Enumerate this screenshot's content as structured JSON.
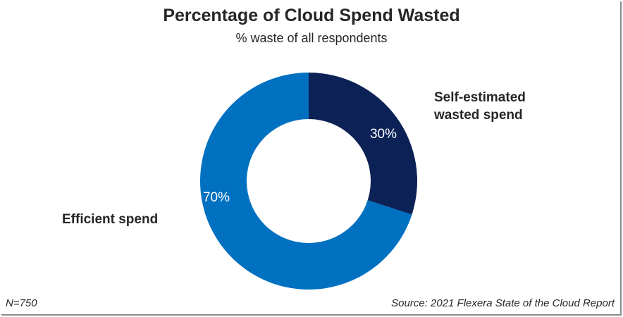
{
  "chart_data": {
    "type": "pie",
    "title": "Percentage of Cloud Spend Wasted",
    "subtitle": "% waste of all respondents",
    "slices": [
      {
        "name": "Self-estimated wasted spend",
        "label_lines": [
          "Self-estimated",
          "wasted spend"
        ],
        "value": 30,
        "display": "30%",
        "color": "#0c2156"
      },
      {
        "name": "Efficient spend",
        "label_lines": [
          "Efficient spend"
        ],
        "value": 70,
        "display": "70%",
        "color": "#0070c0"
      }
    ],
    "donut": true
  },
  "footer": {
    "n_label": "N=750",
    "source": "Source: 2021 Flexera State of the Cloud Report"
  }
}
